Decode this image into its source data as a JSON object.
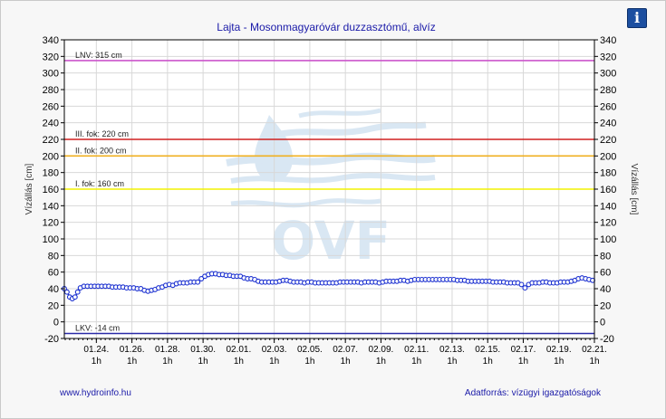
{
  "info_button": {
    "label": "i",
    "icon": "info-icon"
  },
  "footer": {
    "left": "www.hydroinfo.hu",
    "right": "Adatforrás: vízügyi igazgatóságok"
  },
  "chart_data": {
    "type": "line",
    "title": "Lajta - Mosonmagyaróvár duzzasztómű, alvíz",
    "ylabel_left": "Vízállás [cm]",
    "ylabel_right": "Vízállás [cm]",
    "ylim": [
      -20,
      340
    ],
    "yticks": [
      -20,
      0,
      20,
      40,
      60,
      80,
      100,
      120,
      140,
      160,
      180,
      200,
      220,
      240,
      260,
      280,
      300,
      320,
      340
    ],
    "xlim": [
      -0.8,
      29
    ],
    "xticks": [
      {
        "x": 1,
        "date": "01.24.",
        "time": "1h"
      },
      {
        "x": 3,
        "date": "01.26.",
        "time": "1h"
      },
      {
        "x": 5,
        "date": "01.28.",
        "time": "1h"
      },
      {
        "x": 7,
        "date": "01.30.",
        "time": "1h"
      },
      {
        "x": 9,
        "date": "02.01.",
        "time": "1h"
      },
      {
        "x": 11,
        "date": "02.03.",
        "time": "1h"
      },
      {
        "x": 13,
        "date": "02.05.",
        "time": "1h"
      },
      {
        "x": 15,
        "date": "02.07.",
        "time": "1h"
      },
      {
        "x": 17,
        "date": "02.09.",
        "time": "1h"
      },
      {
        "x": 19,
        "date": "02.11.",
        "time": "1h"
      },
      {
        "x": 21,
        "date": "02.13.",
        "time": "1h"
      },
      {
        "x": 23,
        "date": "02.15.",
        "time": "1h"
      },
      {
        "x": 25,
        "date": "02.17.",
        "time": "1h"
      },
      {
        "x": 27,
        "date": "02.19.",
        "time": "1h"
      },
      {
        "x": 29,
        "date": "02.21.",
        "time": "1h"
      }
    ],
    "grid": true,
    "thresholds": [
      {
        "label": "LNV: 315 cm",
        "value": 315,
        "color": "#cc55cc"
      },
      {
        "label": "III. fok: 220 cm",
        "value": 220,
        "color": "#d02020"
      },
      {
        "label": "II. fok: 200 cm",
        "value": 200,
        "color": "#f0b020"
      },
      {
        "label": "I. fok: 160 cm",
        "value": 160,
        "color": "#f2f200"
      },
      {
        "label": "LKV: -14 cm",
        "value": -14,
        "color": "#2a2aa8"
      }
    ],
    "watermark": "OVF",
    "series": [
      {
        "color": "#1a2fd0",
        "points": [
          [
            -0.8,
            40
          ],
          [
            -0.65,
            36
          ],
          [
            -0.5,
            30
          ],
          [
            -0.35,
            28
          ],
          [
            -0.2,
            30
          ],
          [
            -0.05,
            36
          ],
          [
            0.1,
            41
          ],
          [
            0.3,
            43
          ],
          [
            0.5,
            43
          ],
          [
            0.7,
            43
          ],
          [
            0.9,
            43
          ],
          [
            1.1,
            43
          ],
          [
            1.3,
            43
          ],
          [
            1.5,
            43
          ],
          [
            1.7,
            43
          ],
          [
            1.9,
            42
          ],
          [
            2.1,
            42
          ],
          [
            2.3,
            42
          ],
          [
            2.5,
            42
          ],
          [
            2.7,
            41
          ],
          [
            2.9,
            41
          ],
          [
            3.1,
            41
          ],
          [
            3.3,
            40
          ],
          [
            3.5,
            40
          ],
          [
            3.7,
            38
          ],
          [
            3.9,
            37
          ],
          [
            4.1,
            38
          ],
          [
            4.3,
            39
          ],
          [
            4.5,
            41
          ],
          [
            4.7,
            42
          ],
          [
            4.9,
            44
          ],
          [
            5.1,
            45
          ],
          [
            5.3,
            44
          ],
          [
            5.5,
            46
          ],
          [
            5.7,
            47
          ],
          [
            5.9,
            47
          ],
          [
            6.1,
            47
          ],
          [
            6.3,
            48
          ],
          [
            6.5,
            48
          ],
          [
            6.7,
            48
          ],
          [
            6.9,
            52
          ],
          [
            7.1,
            55
          ],
          [
            7.3,
            57
          ],
          [
            7.5,
            58
          ],
          [
            7.7,
            58
          ],
          [
            7.9,
            57
          ],
          [
            8.1,
            57
          ],
          [
            8.3,
            56
          ],
          [
            8.5,
            56
          ],
          [
            8.7,
            55
          ],
          [
            8.9,
            55
          ],
          [
            9.1,
            55
          ],
          [
            9.3,
            53
          ],
          [
            9.5,
            52
          ],
          [
            9.7,
            52
          ],
          [
            9.9,
            51
          ],
          [
            10.1,
            49
          ],
          [
            10.3,
            48
          ],
          [
            10.5,
            48
          ],
          [
            10.7,
            48
          ],
          [
            10.9,
            48
          ],
          [
            11.1,
            48
          ],
          [
            11.3,
            49
          ],
          [
            11.5,
            50
          ],
          [
            11.7,
            50
          ],
          [
            11.9,
            49
          ],
          [
            12.1,
            48
          ],
          [
            12.3,
            48
          ],
          [
            12.5,
            48
          ],
          [
            12.7,
            47
          ],
          [
            12.9,
            48
          ],
          [
            13.1,
            48
          ],
          [
            13.3,
            47
          ],
          [
            13.5,
            47
          ],
          [
            13.7,
            47
          ],
          [
            13.9,
            47
          ],
          [
            14.1,
            47
          ],
          [
            14.3,
            47
          ],
          [
            14.5,
            47
          ],
          [
            14.7,
            48
          ],
          [
            14.9,
            48
          ],
          [
            15.1,
            48
          ],
          [
            15.3,
            48
          ],
          [
            15.5,
            48
          ],
          [
            15.7,
            48
          ],
          [
            15.9,
            47
          ],
          [
            16.1,
            48
          ],
          [
            16.3,
            48
          ],
          [
            16.5,
            48
          ],
          [
            16.7,
            48
          ],
          [
            16.9,
            47
          ],
          [
            17.1,
            48
          ],
          [
            17.3,
            49
          ],
          [
            17.5,
            49
          ],
          [
            17.7,
            49
          ],
          [
            17.9,
            49
          ],
          [
            18.1,
            50
          ],
          [
            18.3,
            50
          ],
          [
            18.5,
            49
          ],
          [
            18.7,
            50
          ],
          [
            18.9,
            51
          ],
          [
            19.1,
            51
          ],
          [
            19.3,
            51
          ],
          [
            19.5,
            51
          ],
          [
            19.7,
            51
          ],
          [
            19.9,
            51
          ],
          [
            20.1,
            51
          ],
          [
            20.3,
            51
          ],
          [
            20.5,
            51
          ],
          [
            20.7,
            51
          ],
          [
            20.9,
            51
          ],
          [
            21.1,
            51
          ],
          [
            21.3,
            50
          ],
          [
            21.5,
            50
          ],
          [
            21.7,
            50
          ],
          [
            21.9,
            49
          ],
          [
            22.1,
            49
          ],
          [
            22.3,
            49
          ],
          [
            22.5,
            49
          ],
          [
            22.7,
            49
          ],
          [
            22.9,
            49
          ],
          [
            23.1,
            49
          ],
          [
            23.3,
            48
          ],
          [
            23.5,
            48
          ],
          [
            23.7,
            48
          ],
          [
            23.9,
            48
          ],
          [
            24.1,
            47
          ],
          [
            24.3,
            47
          ],
          [
            24.5,
            47
          ],
          [
            24.7,
            47
          ],
          [
            24.9,
            45
          ],
          [
            25.1,
            41
          ],
          [
            25.3,
            45
          ],
          [
            25.5,
            47
          ],
          [
            25.7,
            47
          ],
          [
            25.9,
            47
          ],
          [
            26.1,
            48
          ],
          [
            26.3,
            48
          ],
          [
            26.5,
            47
          ],
          [
            26.7,
            47
          ],
          [
            26.9,
            47
          ],
          [
            27.1,
            48
          ],
          [
            27.3,
            48
          ],
          [
            27.5,
            48
          ],
          [
            27.7,
            49
          ],
          [
            27.9,
            50
          ],
          [
            28.1,
            52
          ],
          [
            28.3,
            53
          ],
          [
            28.5,
            52
          ],
          [
            28.7,
            51
          ],
          [
            28.9,
            50
          ]
        ]
      }
    ]
  }
}
